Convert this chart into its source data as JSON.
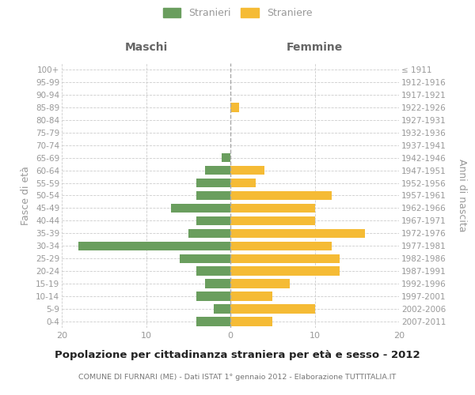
{
  "age_groups": [
    "100+",
    "95-99",
    "90-94",
    "85-89",
    "80-84",
    "75-79",
    "70-74",
    "65-69",
    "60-64",
    "55-59",
    "50-54",
    "45-49",
    "40-44",
    "35-39",
    "30-34",
    "25-29",
    "20-24",
    "15-19",
    "10-14",
    "5-9",
    "0-4"
  ],
  "birth_years": [
    "≤ 1911",
    "1912-1916",
    "1917-1921",
    "1922-1926",
    "1927-1931",
    "1932-1936",
    "1937-1941",
    "1942-1946",
    "1947-1951",
    "1952-1956",
    "1957-1961",
    "1962-1966",
    "1967-1971",
    "1972-1976",
    "1977-1981",
    "1982-1986",
    "1987-1991",
    "1992-1996",
    "1997-2001",
    "2002-2006",
    "2007-2011"
  ],
  "maschi": [
    0,
    0,
    0,
    0,
    0,
    0,
    0,
    1,
    3,
    4,
    4,
    7,
    4,
    5,
    18,
    6,
    4,
    3,
    4,
    2,
    4
  ],
  "femmine": [
    0,
    0,
    0,
    1,
    0,
    0,
    0,
    0,
    4,
    3,
    12,
    10,
    10,
    16,
    12,
    13,
    13,
    7,
    5,
    10,
    5
  ],
  "color_maschi": "#6a9e5e",
  "color_femmine": "#f5bb35",
  "title_main": "Popolazione per cittadinanza straniera per età e sesso - 2012",
  "title_sub": "COMUNE DI FURNARI (ME) - Dati ISTAT 1° gennaio 2012 - Elaborazione TUTTITALIA.IT",
  "label_maschi": "Stranieri",
  "label_femmine": "Straniere",
  "ylabel_left": "Fasce di età",
  "ylabel_right": "Anni di nascita",
  "header_left": "Maschi",
  "header_right": "Femmine",
  "xlim": 20,
  "bg_color": "#ffffff",
  "grid_color": "#cccccc",
  "tick_color": "#999999",
  "header_color": "#666666"
}
